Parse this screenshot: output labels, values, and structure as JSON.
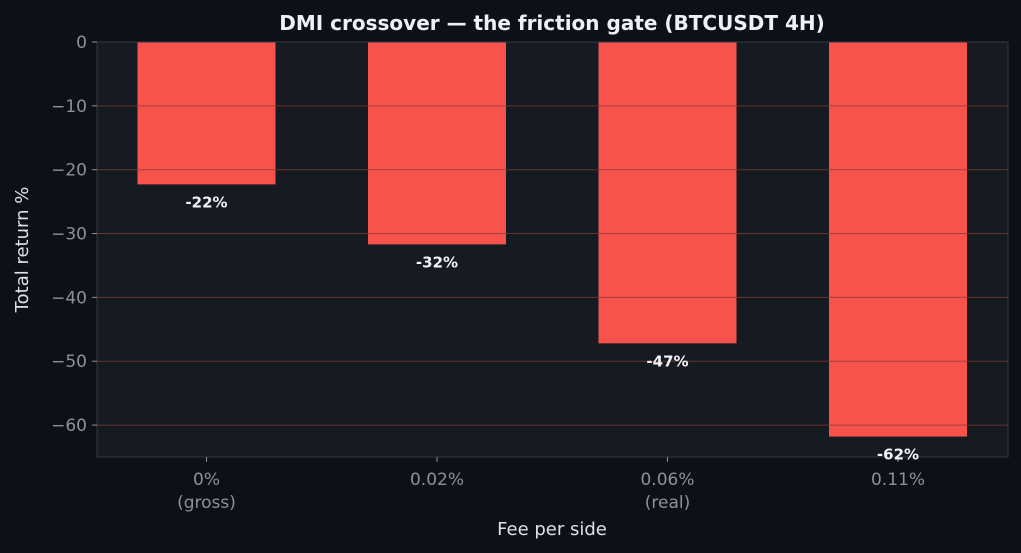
{
  "chart_data": {
    "type": "bar",
    "title": "DMI crossover — the friction gate (BTCUSDT 4H)",
    "xlabel": "Fee per side",
    "ylabel": "Total return %",
    "categories": [
      [
        "0%",
        "(gross)"
      ],
      [
        "0.02%"
      ],
      [
        "0.06%",
        "(real)"
      ],
      [
        "0.11%"
      ]
    ],
    "values": [
      -22.3,
      -31.7,
      -47.2,
      -61.8
    ],
    "data_labels": [
      "-22%",
      "-32%",
      "-47%",
      "-62%"
    ],
    "ylim": [
      -65,
      0
    ],
    "yticks": [
      0,
      -10,
      -20,
      -30,
      -40,
      -50,
      -60
    ],
    "ytick_labels": [
      "0",
      "−10",
      "−20",
      "−30",
      "−40",
      "−50",
      "−60"
    ],
    "grid": true,
    "colors": {
      "bar": "#f8524c",
      "plot_background": "#161a21",
      "figure_background": "#0d1017",
      "grid": "#8a3b33",
      "frame": "#323843"
    }
  }
}
